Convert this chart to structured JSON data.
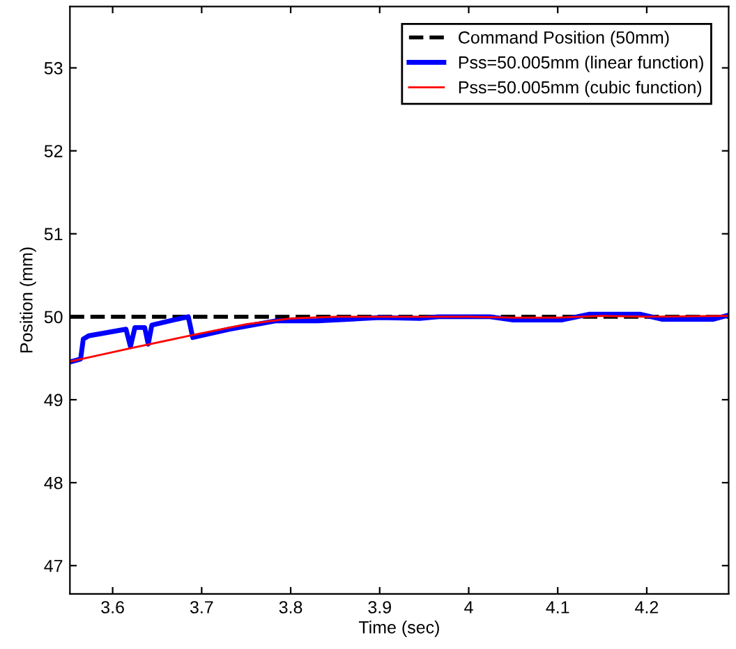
{
  "chart_data": {
    "type": "line",
    "xlabel": "Time (sec)",
    "ylabel": "Position (mm)",
    "xlim": [
      3.552,
      4.292
    ],
    "ylim": [
      46.66,
      53.74
    ],
    "xticks": [
      3.6,
      3.7,
      3.8,
      3.9,
      4,
      4.1,
      4.2
    ],
    "yticks": [
      47,
      48,
      49,
      50,
      51,
      52,
      53
    ],
    "grid": false,
    "legend": "top right",
    "marker": "none",
    "series": [
      {
        "name": "Command Position (50mm)",
        "color": "#000000",
        "line_style": "dashed",
        "x": [
          3.552,
          4.292
        ],
        "values": [
          50,
          50
        ]
      },
      {
        "name": "Pss=50.005mm (linear function)",
        "color": "#0000ff",
        "line_style": "solid",
        "x": [
          3.554,
          3.564,
          3.567,
          3.573,
          3.615,
          3.62,
          3.625,
          3.636,
          3.64,
          3.644,
          3.668,
          3.685,
          3.69,
          3.731,
          3.783,
          3.83,
          3.9,
          3.945,
          3.966,
          4.024,
          4.05,
          4.104,
          4.135,
          4.193,
          4.217,
          4.275,
          4.292
        ],
        "values": [
          49.46,
          49.49,
          49.73,
          49.77,
          49.85,
          49.64,
          49.87,
          49.87,
          49.67,
          49.9,
          49.96,
          50.0,
          49.75,
          49.85,
          49.95,
          49.95,
          49.99,
          49.98,
          50.0,
          50.0,
          49.96,
          49.96,
          50.03,
          50.03,
          49.97,
          49.97,
          50.02
        ]
      },
      {
        "name": "Pss=50.005mm (cubic function)",
        "color": "#ff0000",
        "line_style": "solid",
        "x": [
          3.552,
          3.62,
          3.69,
          3.75,
          3.8,
          3.85,
          4.0,
          4.05,
          4.1,
          4.15,
          4.2,
          4.292
        ],
        "values": [
          49.46,
          49.62,
          49.78,
          49.91,
          49.98,
          50.0,
          50.0,
          49.99,
          49.99,
          50.01,
          50.0,
          50.01
        ]
      }
    ]
  }
}
